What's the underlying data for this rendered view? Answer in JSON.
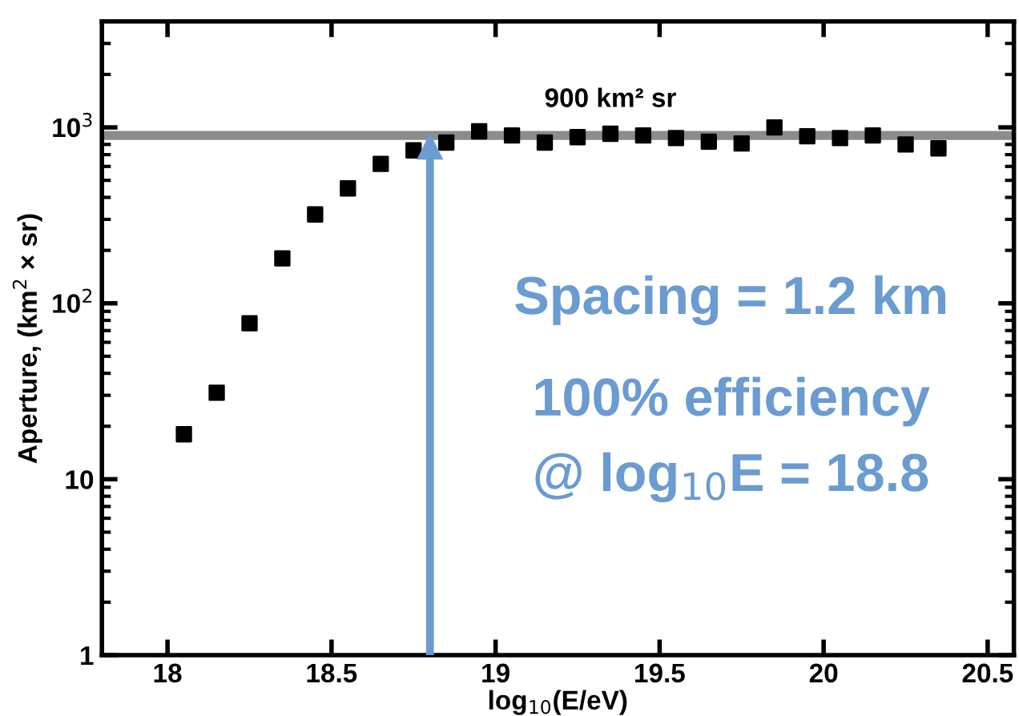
{
  "chart_data": {
    "type": "scatter",
    "xlabel": "log$_{10}$(E/eV)",
    "ylabel": "Aperture, (km$^{2}$ × sr)",
    "x": [
      18.05,
      18.15,
      18.25,
      18.35,
      18.45,
      18.55,
      18.65,
      18.75,
      18.85,
      18.95,
      19.05,
      19.15,
      19.25,
      19.35,
      19.45,
      19.55,
      19.65,
      19.75,
      19.85,
      19.95,
      20.05,
      20.15,
      20.25,
      20.35
    ],
    "series": [
      {
        "color": "#000000",
        "values": [
          18,
          31,
          77,
          180,
          320,
          450,
          620,
          740,
          820,
          950,
          900,
          820,
          880,
          920,
          900,
          870,
          830,
          810,
          1000,
          890,
          870,
          900,
          800,
          760
        ]
      }
    ],
    "marker": "square",
    "log": "y",
    "xlim": [
      17.8,
      20.58
    ],
    "xticks": [
      18,
      18.5,
      19,
      19.5,
      20,
      20.5
    ],
    "ylim": [
      1,
      4000
    ],
    "yticks": [
      1,
      10,
      {
        "value": 100,
        "label": "10$^{2}$"
      },
      {
        "value": 1000,
        "label": "10$^{3}$"
      }
    ],
    "ref_lines": [
      {
        "axis": "y",
        "value": 900,
        "label": "900 km² sr",
        "color": "#8c8c8c"
      },
      {
        "axis": "x",
        "value": 18.8,
        "label": null,
        "color": "#6a9bd1"
      }
    ],
    "annotations": [
      "Spacing = 1.2 km",
      "100% efficiency",
      "@ log$_{10}$E = 18.8"
    ],
    "grid": false,
    "legend": false
  }
}
